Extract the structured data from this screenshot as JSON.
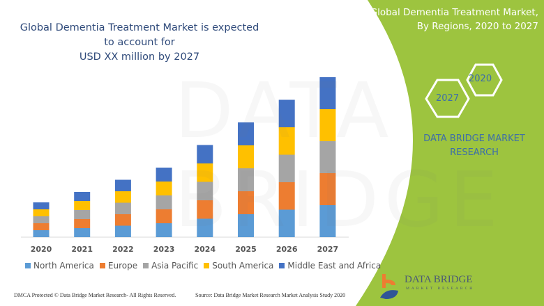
{
  "title": {
    "line1": "Global Dementia Treatment Market is expected to account for",
    "line2": "USD XX million by 2027"
  },
  "side_panel": {
    "title_line1": "Global Dementia Treatment Market,",
    "title_line2": "By Regions, 2020 to 2027",
    "hex_years": [
      "2020",
      "2027"
    ],
    "brand_line1": "DATA BRIDGE MARKET",
    "brand_line2": "RESEARCH",
    "background_color": "#9dc43f"
  },
  "watermark": "DATA BRIDGE",
  "logo": {
    "name": "DATA BRIDGE",
    "sub": "MARKET RESEARCH"
  },
  "footer": {
    "copyright": "DMCA Protected © Data Bridge Market Research- All Rights Reserved.",
    "source": "Source: Data Bridge Market Research Market Analysis Study 2020"
  },
  "chart_data": {
    "type": "bar",
    "stacked": true,
    "title": "",
    "xlabel": "",
    "ylabel": "",
    "y_axis_shown": false,
    "grid": false,
    "legend_placement": "bottom",
    "categories": [
      "2020",
      "2021",
      "2022",
      "2023",
      "2024",
      "2025",
      "2026",
      "2027"
    ],
    "series": [
      {
        "name": "North America",
        "color": "#5b9bd5",
        "values": [
          10,
          13,
          16.5,
          20,
          26.5,
          33,
          39.5,
          46
        ]
      },
      {
        "name": "Europe",
        "color": "#ed7d31",
        "values": [
          10,
          13,
          16.5,
          20,
          26.5,
          33,
          39.5,
          46
        ]
      },
      {
        "name": "Asia Pacific",
        "color": "#a5a5a5",
        "values": [
          10,
          13,
          16.5,
          20,
          26.5,
          33,
          39.5,
          46
        ]
      },
      {
        "name": "South America",
        "color": "#ffc000",
        "values": [
          10,
          13,
          16.5,
          20,
          26.5,
          33,
          39.5,
          46
        ]
      },
      {
        "name": "Middle East and Africa",
        "color": "#4472c4",
        "values": [
          10,
          13,
          16.5,
          20,
          26.5,
          33,
          39.5,
          46
        ]
      }
    ]
  }
}
